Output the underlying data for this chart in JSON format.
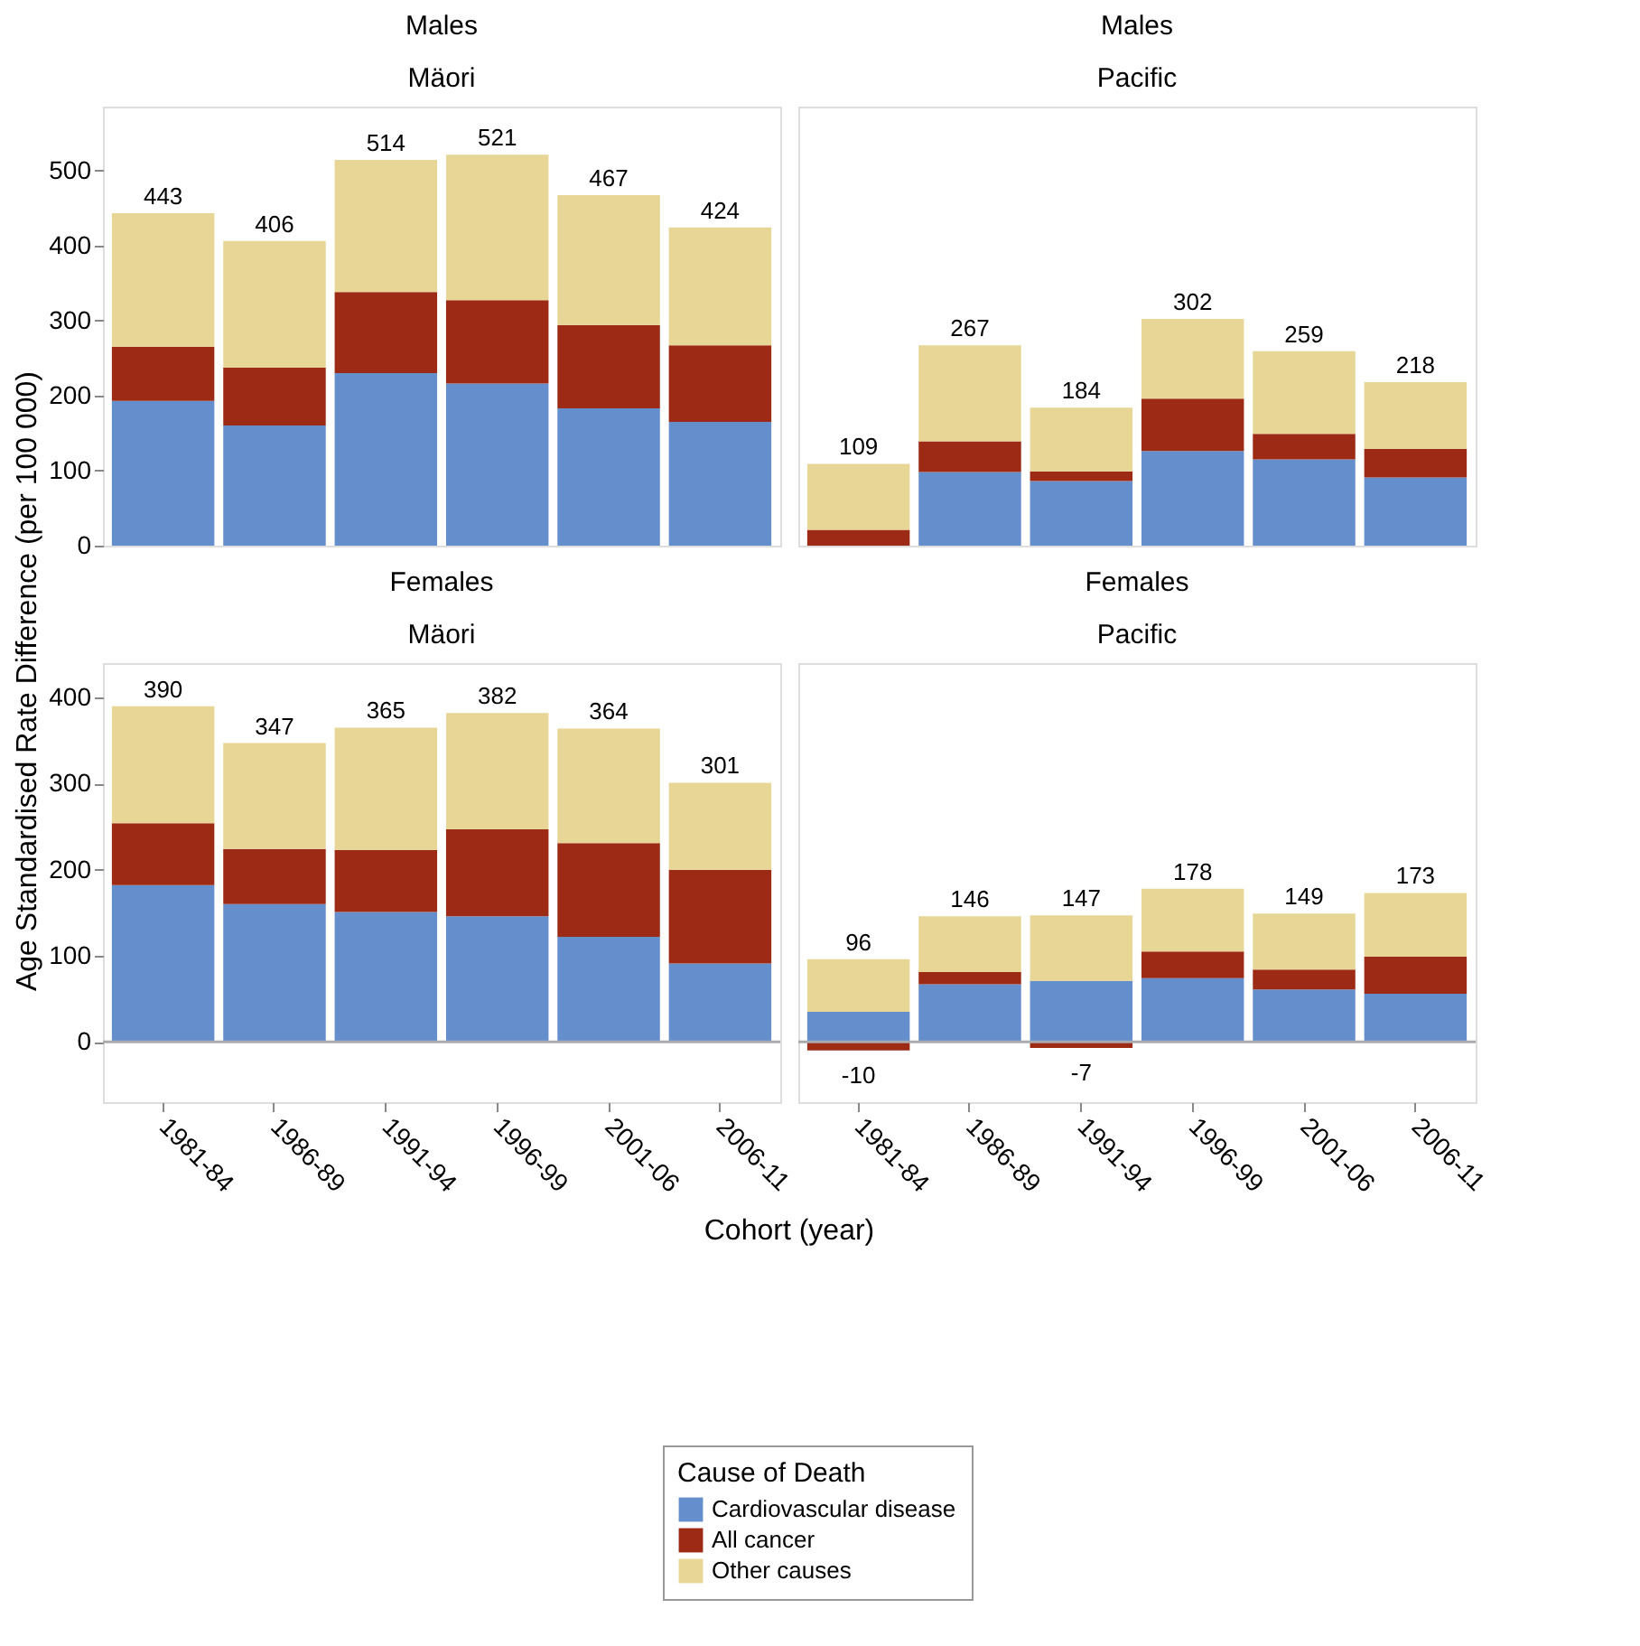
{
  "chart_data": [
    {
      "type": "bar",
      "stacked": true,
      "title": "Males",
      "subtitle": "Mäori",
      "ylabel": "Age Standardised Rate Difference (per 100 000)",
      "xlabel": "Cohort (year)",
      "legend_title": "Cause of Death",
      "legend": "bottom",
      "tick_labels": "y",
      "categories": [
        "1981-84",
        "1986-89",
        "1991-94",
        "1996-99",
        "2001-06",
        "2006-11"
      ],
      "ylim": [
        0,
        585
      ],
      "yticks": [
        0,
        100,
        200,
        300,
        400,
        500
      ],
      "series": [
        {
          "name": "Cardiovascular disease",
          "color": "#658fcc",
          "values": [
            193,
            160,
            230,
            216,
            183,
            165
          ]
        },
        {
          "name": "All cancer",
          "color": "#9c2a14",
          "values": [
            72,
            77,
            108,
            111,
            111,
            102
          ]
        },
        {
          "name": "Other causes",
          "color": "#e7d696",
          "values": [
            178,
            169,
            176,
            194,
            173,
            157
          ]
        }
      ],
      "totals": [
        "443",
        "406",
        "514",
        "521",
        "467",
        "424"
      ]
    },
    {
      "type": "bar",
      "stacked": true,
      "title": "Males",
      "subtitle": "Pacific",
      "tick_labels": false,
      "categories": [
        "1981-84",
        "1986-89",
        "1991-94",
        "1996-99",
        "2001-06",
        "2006-11"
      ],
      "ylim": [
        0,
        585
      ],
      "yticks": [
        0,
        100,
        200,
        300,
        400,
        500
      ],
      "series": [
        {
          "name": "Cardiovascular disease",
          "color": "#658fcc",
          "values": [
            0,
            98,
            86,
            126,
            115,
            91
          ]
        },
        {
          "name": "All cancer",
          "color": "#9c2a14",
          "values": [
            21,
            41,
            13,
            70,
            34,
            38
          ]
        },
        {
          "name": "Other causes",
          "color": "#e7d696",
          "values": [
            88,
            128,
            85,
            106,
            110,
            89
          ]
        }
      ],
      "totals": [
        "109",
        "267",
        "184",
        "302",
        "259",
        "218"
      ]
    },
    {
      "type": "bar",
      "stacked": true,
      "title": "Females",
      "subtitle": "Mäori",
      "categories": [
        "1981-84",
        "1986-89",
        "1991-94",
        "1996-99",
        "2001-06",
        "2006-11"
      ],
      "ylim": [
        -70,
        440
      ],
      "yticks": [
        0,
        100,
        200,
        300,
        400
      ],
      "ref_lines": [
        {
          "axis": "y",
          "value": 0,
          "color": "#a8aaad"
        }
      ],
      "series": [
        {
          "name": "Cardiovascular disease",
          "color": "#658fcc",
          "values": [
            182,
            160,
            151,
            146,
            122,
            91
          ]
        },
        {
          "name": "All cancer",
          "color": "#9c2a14",
          "values": [
            72,
            64,
            72,
            101,
            109,
            109
          ]
        },
        {
          "name": "Other causes",
          "color": "#e7d696",
          "values": [
            136,
            123,
            142,
            135,
            133,
            101
          ]
        }
      ],
      "totals": [
        "390",
        "347",
        "365",
        "382",
        "364",
        "301"
      ]
    },
    {
      "type": "bar",
      "stacked": true,
      "title": "Females",
      "subtitle": "Pacific",
      "tick_labels": "x",
      "categories": [
        "1981-84",
        "1986-89",
        "1991-94",
        "1996-99",
        "2001-06",
        "2006-11"
      ],
      "ylim": [
        -70,
        440
      ],
      "yticks": [
        0,
        100,
        200,
        300,
        400
      ],
      "ref_lines": [
        {
          "axis": "y",
          "value": 0,
          "color": "#a8aaad"
        }
      ],
      "series": [
        {
          "name": "Cardiovascular disease",
          "color": "#658fcc",
          "values": [
            35,
            67,
            71,
            74,
            61,
            56
          ]
        },
        {
          "name": "All cancer",
          "color": "#9c2a14",
          "values": [
            -10,
            14,
            -7,
            31,
            23,
            43
          ],
          "value_labels": [
            "-10",
            null,
            "-7",
            null,
            null,
            null
          ]
        },
        {
          "name": "Other causes",
          "color": "#e7d696",
          "values": [
            61,
            65,
            76,
            73,
            65,
            74
          ]
        }
      ],
      "totals": [
        null,
        "146",
        null,
        "178",
        "149",
        "173"
      ],
      "annotations": [
        {
          "text": "96",
          "x": "1981-84",
          "y": 96
        },
        {
          "text": "147",
          "x": "1991-94",
          "y": 147
        }
      ]
    }
  ]
}
